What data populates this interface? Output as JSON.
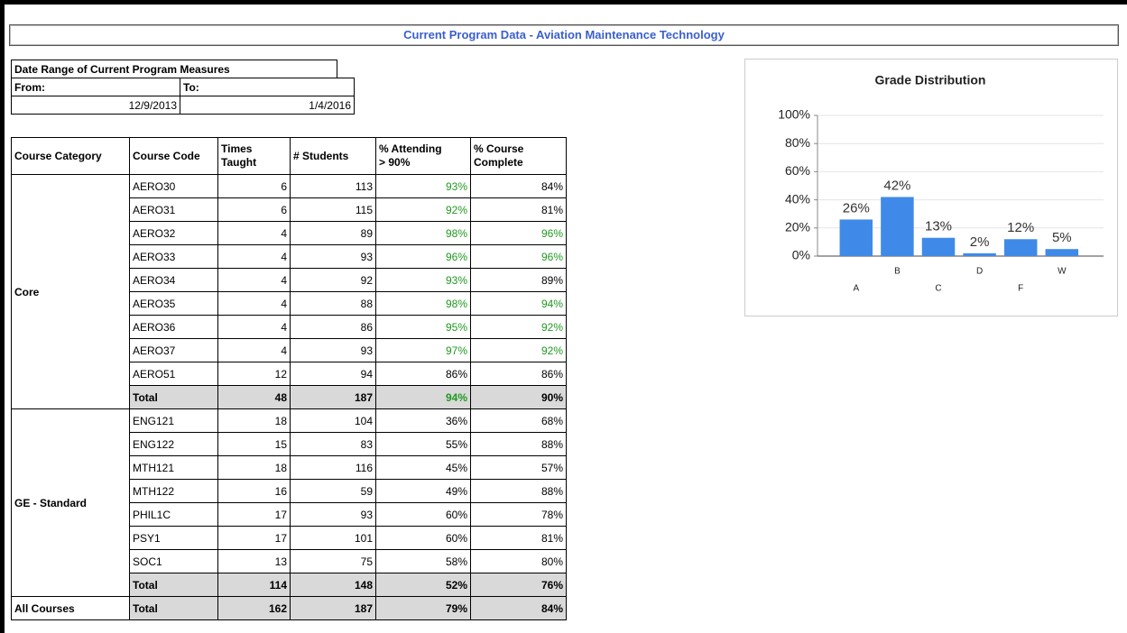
{
  "title": "Current Program Data - Aviation Maintenance Technology",
  "date_range": {
    "title": "Date Range of Current Program Measures",
    "from_label": "From:",
    "to_label": "To:",
    "from": "12/9/2013",
    "to": "1/4/2016"
  },
  "highlight_color": "#1f9a1f",
  "table": {
    "header": [
      "Course Category",
      "Course Code",
      "Times Taught",
      "# Students",
      "% Attending\n> 90%",
      "% Course\nComplete"
    ],
    "groups": [
      {
        "category": "Core",
        "rows": [
          {
            "cells": [
              "AERO30",
              "6",
              "113",
              {
                "text": "93%",
                "highlight": true
              },
              "84%"
            ]
          },
          {
            "cells": [
              "AERO31",
              "6",
              "115",
              {
                "text": "92%",
                "highlight": true
              },
              "81%"
            ]
          },
          {
            "cells": [
              "AERO32",
              "4",
              "89",
              {
                "text": "98%",
                "highlight": true
              },
              {
                "text": "96%",
                "highlight": true
              }
            ]
          },
          {
            "cells": [
              "AERO33",
              "4",
              "93",
              {
                "text": "96%",
                "highlight": true
              },
              {
                "text": "96%",
                "highlight": true
              }
            ]
          },
          {
            "cells": [
              "AERO34",
              "4",
              "92",
              {
                "text": "93%",
                "highlight": true
              },
              "89%"
            ]
          },
          {
            "cells": [
              "AERO35",
              "4",
              "88",
              {
                "text": "98%",
                "highlight": true
              },
              {
                "text": "94%",
                "highlight": true
              }
            ]
          },
          {
            "cells": [
              "AERO36",
              "4",
              "86",
              {
                "text": "95%",
                "highlight": true
              },
              {
                "text": "92%",
                "highlight": true
              }
            ]
          },
          {
            "cells": [
              "AERO37",
              "4",
              "93",
              {
                "text": "97%",
                "highlight": true
              },
              {
                "text": "92%",
                "highlight": true
              }
            ]
          },
          {
            "cells": [
              "AERO51",
              "12",
              "94",
              "86%",
              "86%"
            ]
          },
          {
            "cells": [
              "Total",
              "48",
              "187",
              {
                "text": "94%",
                "highlight": true
              },
              "90%"
            ],
            "total": true
          }
        ]
      },
      {
        "category": "GE - Standard",
        "rows": [
          {
            "cells": [
              "ENG121",
              "18",
              "104",
              "36%",
              "68%"
            ]
          },
          {
            "cells": [
              "ENG122",
              "15",
              "83",
              "55%",
              "88%"
            ]
          },
          {
            "cells": [
              "MTH121",
              "18",
              "116",
              "45%",
              "57%"
            ]
          },
          {
            "cells": [
              "MTH122",
              "16",
              "59",
              "49%",
              "88%"
            ]
          },
          {
            "cells": [
              "PHIL1C",
              "17",
              "93",
              "60%",
              "78%"
            ]
          },
          {
            "cells": [
              "PSY1",
              "17",
              "101",
              "60%",
              "81%"
            ]
          },
          {
            "cells": [
              "SOC1",
              "13",
              "75",
              "58%",
              "80%"
            ]
          },
          {
            "cells": [
              "Total",
              "114",
              "148",
              "52%",
              "76%"
            ],
            "total": true
          }
        ]
      },
      {
        "category": "All Courses",
        "rows": [
          {
            "cells": [
              "Total",
              "162",
              "187",
              "79%",
              "84%"
            ],
            "total": true
          }
        ]
      }
    ]
  },
  "chart_data": {
    "type": "bar",
    "title": "Grade Distribution",
    "categories": [
      "A",
      "B",
      "C",
      "D",
      "F",
      "W"
    ],
    "values": [
      26,
      42,
      13,
      2,
      12,
      5
    ],
    "value_labels": [
      "26%",
      "42%",
      "13%",
      "2%",
      "12%",
      "5%"
    ],
    "color": "#3f8ae8",
    "ylim": [
      0,
      100
    ],
    "yticks": [
      {
        "value": 0,
        "label": "0%"
      },
      {
        "value": 20,
        "label": "20%"
      },
      {
        "value": 40,
        "label": "40%"
      },
      {
        "value": 60,
        "label": "60%"
      },
      {
        "value": 80,
        "label": "80%"
      },
      {
        "value": 100,
        "label": "100%"
      }
    ],
    "grid": true
  }
}
